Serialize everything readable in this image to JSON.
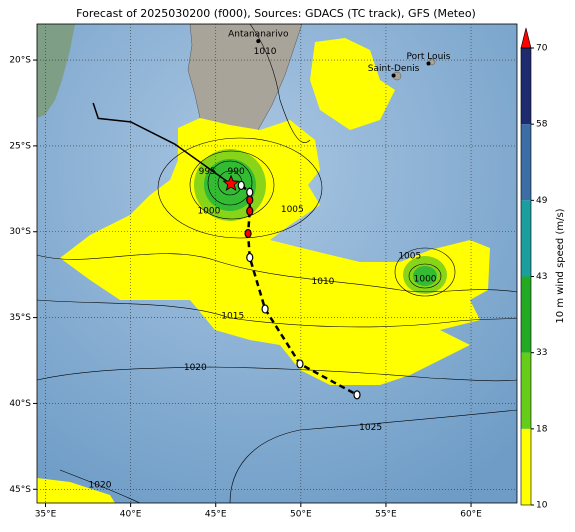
{
  "map": {
    "title": "Forecast of 2025030200 (f000), Sources: GDACS (TC track), GFS (Meteo)",
    "lonlim": [
      34.5,
      62.7
    ],
    "latlim": [
      -17.9,
      -45.8
    ],
    "xticks": [
      {
        "value": 35,
        "label": "35°E"
      },
      {
        "value": 40,
        "label": "40°E"
      },
      {
        "value": 45,
        "label": "45°E"
      },
      {
        "value": 50,
        "label": "50°E"
      },
      {
        "value": 55,
        "label": "55°E"
      },
      {
        "value": 60,
        "label": "60°E"
      }
    ],
    "yticks": [
      {
        "value": -20,
        "label": "20°S"
      },
      {
        "value": -25,
        "label": "25°S"
      },
      {
        "value": -30,
        "label": "30°S"
      },
      {
        "value": -35,
        "label": "35°S"
      },
      {
        "value": -40,
        "label": "40°S"
      },
      {
        "value": -45,
        "label": "45°S"
      }
    ],
    "grid": true,
    "cities": [
      {
        "name": "Antananarivo",
        "lon": 47.5,
        "lat": -18.9
      },
      {
        "name": "Port Louis",
        "lon": 57.5,
        "lat": -20.2
      },
      {
        "name": "Saint-Denis",
        "lon": 55.45,
        "lat": -20.9
      }
    ],
    "isobar_labels": [
      {
        "value": 1010,
        "lon": 47.9,
        "lat": -19.5
      },
      {
        "value": 995,
        "lon": 44.5,
        "lat": -26.5
      },
      {
        "value": 990,
        "lon": 46.2,
        "lat": -26.5
      },
      {
        "value": 1000,
        "lon": 44.6,
        "lat": -28.8
      },
      {
        "value": 1005,
        "lon": 49.5,
        "lat": -28.7
      },
      {
        "value": 1010,
        "lon": 51.3,
        "lat": -32.9
      },
      {
        "value": 1015,
        "lon": 46.0,
        "lat": -34.9
      },
      {
        "value": 1020,
        "lon": 43.8,
        "lat": -37.9
      },
      {
        "value": 1020,
        "lon": 38.2,
        "lat": -44.75
      },
      {
        "value": 1025,
        "lon": 54.1,
        "lat": -41.4
      },
      {
        "value": 1005,
        "lon": 56.4,
        "lat": -31.4
      },
      {
        "value": 1000,
        "lon": 57.3,
        "lat": -32.75
      }
    ],
    "storm": {
      "lon": 45.9,
      "lat": -27.2,
      "color": "#ff0000"
    },
    "track_past": {
      "lon": [
        37.8,
        38.1,
        40.0,
        42.6,
        45.8
      ],
      "lat": [
        -22.5,
        -23.4,
        -23.6,
        -24.9,
        -27.16
      ]
    },
    "track_forecast": {
      "lon": [
        46.5,
        47.0,
        47.0,
        47.0,
        46.9,
        47.0,
        47.9,
        49.95,
        53.3
      ],
      "lat": [
        -27.3,
        -27.7,
        -28.15,
        -28.8,
        -30.1,
        -31.5,
        -34.5,
        -37.7,
        -39.5
      ],
      "colors": [
        "#ffffff",
        "#ffffff",
        "#ff0000",
        "#ff0000",
        "#ff0000",
        "#ffffff",
        "#ffffff",
        "#ffffff",
        "#ffffff"
      ]
    }
  },
  "colorbar": {
    "label": "10 m wind speed (m/s)",
    "ticks": [
      10,
      18,
      33,
      43,
      49,
      58,
      70
    ],
    "colors": [
      "#ffff00",
      "#66cc1a",
      "#22aa22",
      "#1a9e9e",
      "#3a6ea5",
      "#1e2b6e"
    ],
    "extend_color": "#ff0000"
  }
}
